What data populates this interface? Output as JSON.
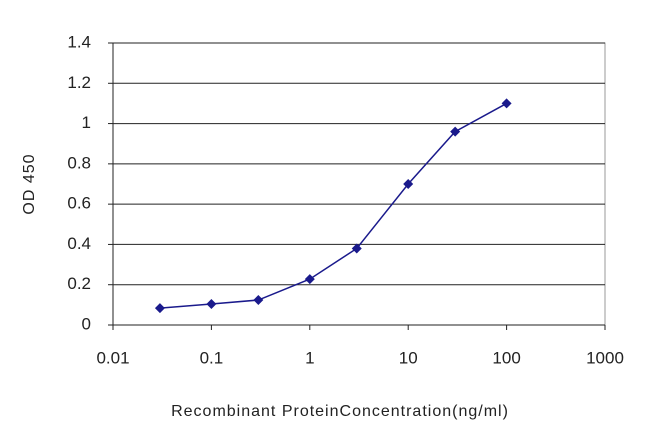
{
  "chart_data": {
    "type": "line",
    "x_label": "Recombinant ProteinConcentration(ng/ml)",
    "y_label": "OD 450",
    "xscale": "log",
    "grid": true,
    "x": [
      0.03,
      0.1,
      0.3,
      1,
      3,
      10,
      30,
      100
    ],
    "series": [
      {
        "color": "#1a1a8c",
        "values": [
          0.084,
          0.104,
          0.124,
          0.228,
          0.38,
          0.7,
          0.96,
          1.1
        ]
      }
    ],
    "xlim": [
      0.01,
      1000
    ],
    "xticks": [
      0.01,
      0.1,
      1,
      10,
      100,
      1000
    ],
    "ylim": [
      0,
      1.4
    ],
    "yticks": [
      0,
      0.2,
      0.4,
      0.6,
      0.8,
      1,
      1.2,
      1.4
    ]
  }
}
